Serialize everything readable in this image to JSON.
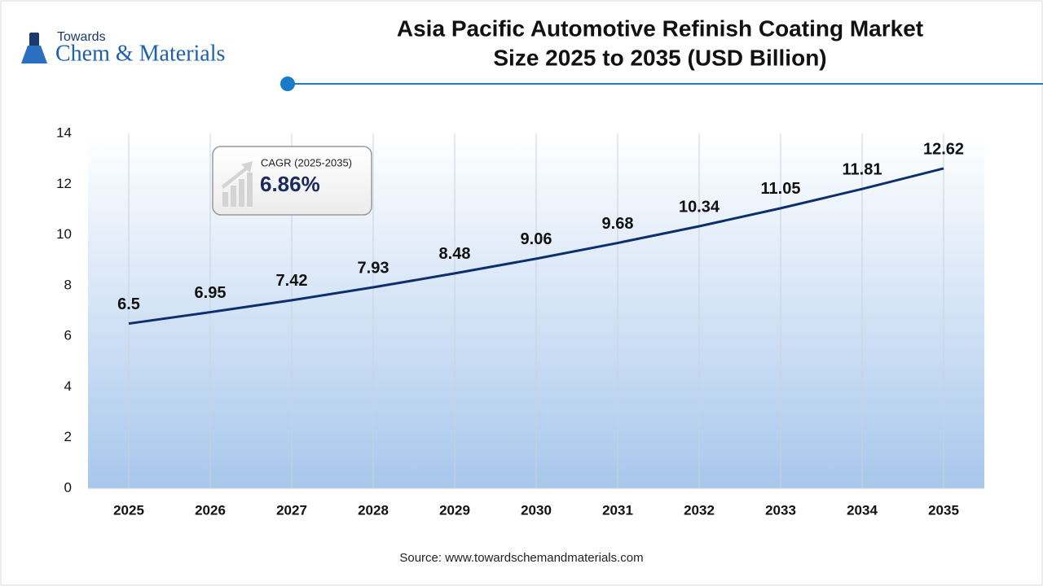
{
  "chart_data": {
    "type": "line",
    "logo": {
      "top": "Towards",
      "bottom": "Chem & Materials"
    },
    "title": [
      "Asia Pacific Automotive Refinish Coating Market",
      "Size 2025 to 2035 (USD Billion)"
    ],
    "categories": [
      "2025",
      "2026",
      "2027",
      "2028",
      "2029",
      "2030",
      "2031",
      "2032",
      "2033",
      "2034",
      "2035"
    ],
    "values": [
      6.5,
      6.95,
      7.42,
      7.93,
      8.48,
      9.06,
      9.68,
      10.34,
      11.05,
      11.81,
      12.62
    ],
    "color": "#0d2f6e",
    "ylim": [
      0,
      14
    ],
    "yticks": [
      0,
      2,
      4,
      6,
      8,
      10,
      12,
      14
    ],
    "cagr": {
      "label": "CAGR (2025-2035)",
      "value": "6.86%"
    },
    "source": "Source: www.towardschemandmaterials.com"
  }
}
